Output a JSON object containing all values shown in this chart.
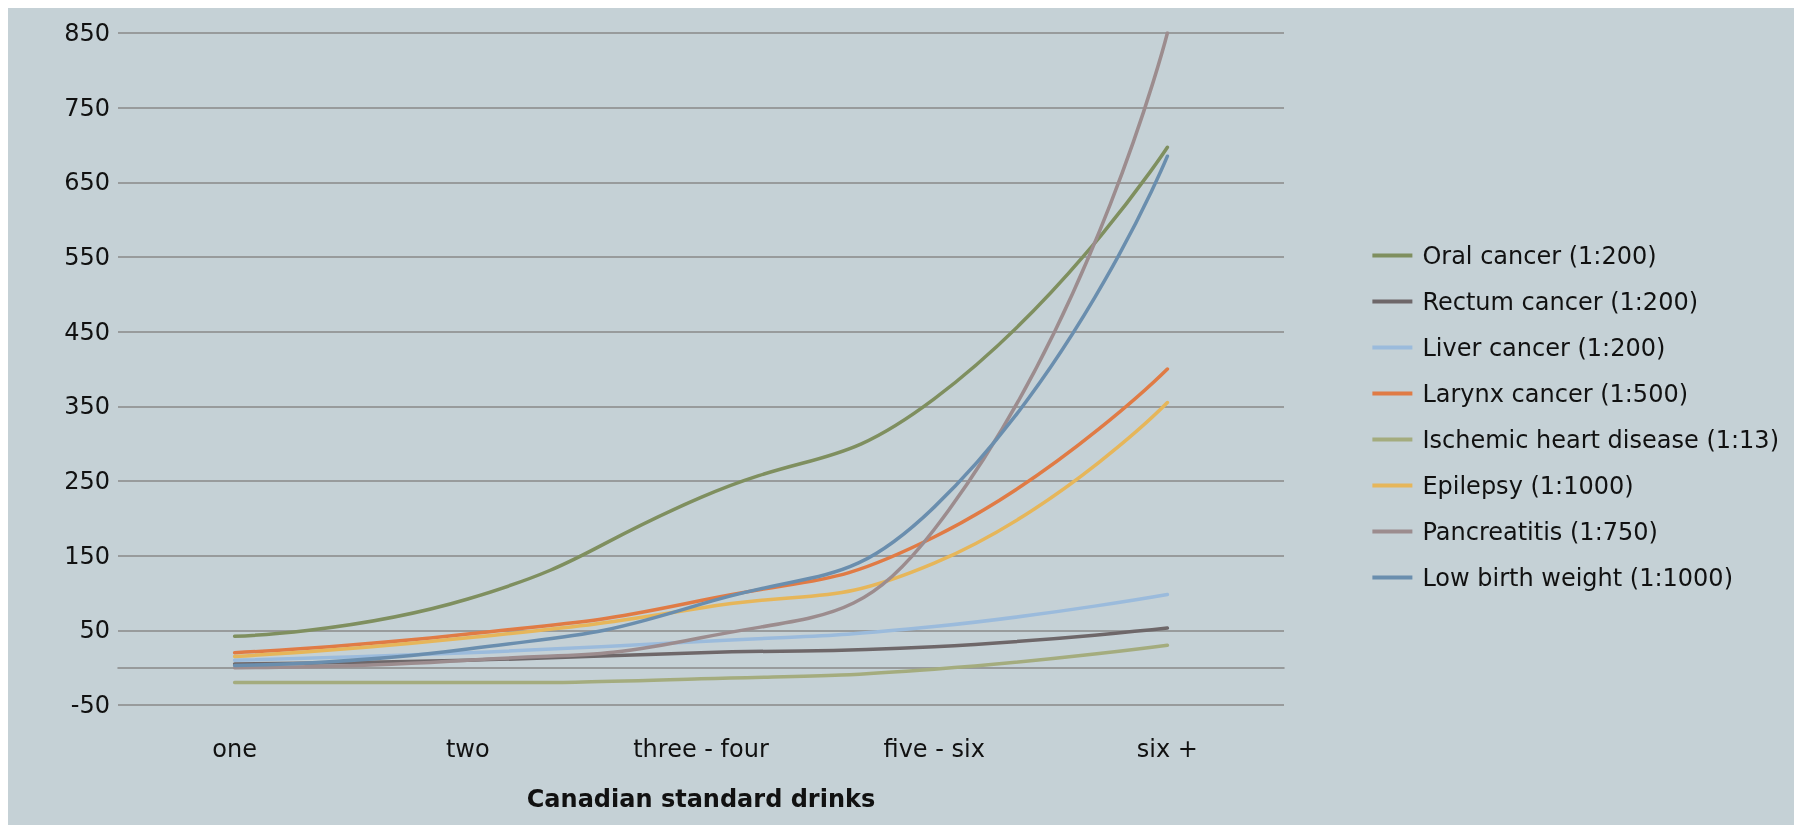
{
  "chart_data": {
    "type": "line",
    "xlabel": "Canadian standard drinks",
    "categories": [
      "one",
      "two",
      "three - four",
      "five - six",
      "six +"
    ],
    "ylim": [
      -50,
      850
    ],
    "yticks": [
      -50,
      50,
      150,
      250,
      350,
      450,
      550,
      650,
      750,
      850
    ],
    "grid": "y",
    "legend": "right",
    "marker": "none",
    "line_style": "solid",
    "series": [
      {
        "name": "Oral cancer (1:200)",
        "color": "#7f8f5f",
        "values": [
          42,
          92,
          228,
          360,
          697
        ]
      },
      {
        "name": "Rectum cancer (1:200)",
        "color": "#6e6769",
        "values": [
          5,
          10,
          20,
          28,
          53
        ]
      },
      {
        "name": "Liver cancer (1:200)",
        "color": "#9bbbdc",
        "values": [
          10,
          20,
          35,
          55,
          98
        ]
      },
      {
        "name": "Larynx cancer (1:500)",
        "color": "#e07b45",
        "values": [
          20,
          45,
          90,
          175,
          400
        ]
      },
      {
        "name": "Ischemic heart disease (1:13)",
        "color": "#a4ac7e",
        "values": [
          -20,
          -20,
          -15,
          -2,
          30
        ]
      },
      {
        "name": "Epilepsy (1:1000)",
        "color": "#e6b65a",
        "values": [
          15,
          40,
          80,
          140,
          355
        ]
      },
      {
        "name": "Pancreatitis (1:750)",
        "color": "#9c8c8e",
        "values": [
          0,
          10,
          40,
          185,
          850
        ]
      },
      {
        "name": "Low birth weight (1:1000)",
        "color": "#6a8eae",
        "values": [
          3,
          25,
          85,
          215,
          685
        ]
      }
    ]
  }
}
